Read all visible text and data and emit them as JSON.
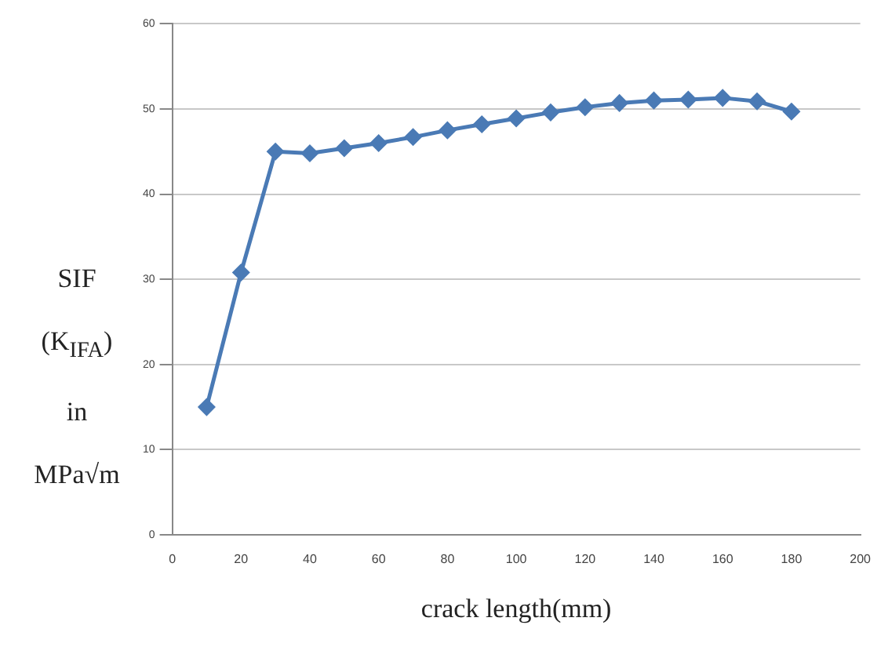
{
  "chart_data": {
    "type": "line",
    "xlabel": "crack length(mm)",
    "ylabel": "SIF (K$_{IFA}$) in MPa√m",
    "x": [
      10,
      20,
      30,
      40,
      50,
      60,
      70,
      80,
      90,
      100,
      110,
      120,
      130,
      140,
      150,
      160,
      170,
      180
    ],
    "series": [
      {
        "color": "#4a7ab5",
        "values": [
          15,
          30.8,
          45,
          44.8,
          45.4,
          46,
          46.7,
          47.5,
          48.2,
          48.9,
          49.6,
          50.2,
          50.7,
          51,
          51.1,
          51.3,
          50.9,
          49.7
        ]
      }
    ],
    "xlim": [
      0,
      200
    ],
    "xticks": [
      0,
      20,
      40,
      60,
      80,
      100,
      120,
      140,
      160,
      180,
      200
    ],
    "ylim": [
      0,
      60
    ],
    "yticks": [
      0,
      10,
      20,
      30,
      40,
      50,
      60
    ],
    "grid": "y",
    "marker": "diamond",
    "line_style": "solid",
    "legend": false
  }
}
